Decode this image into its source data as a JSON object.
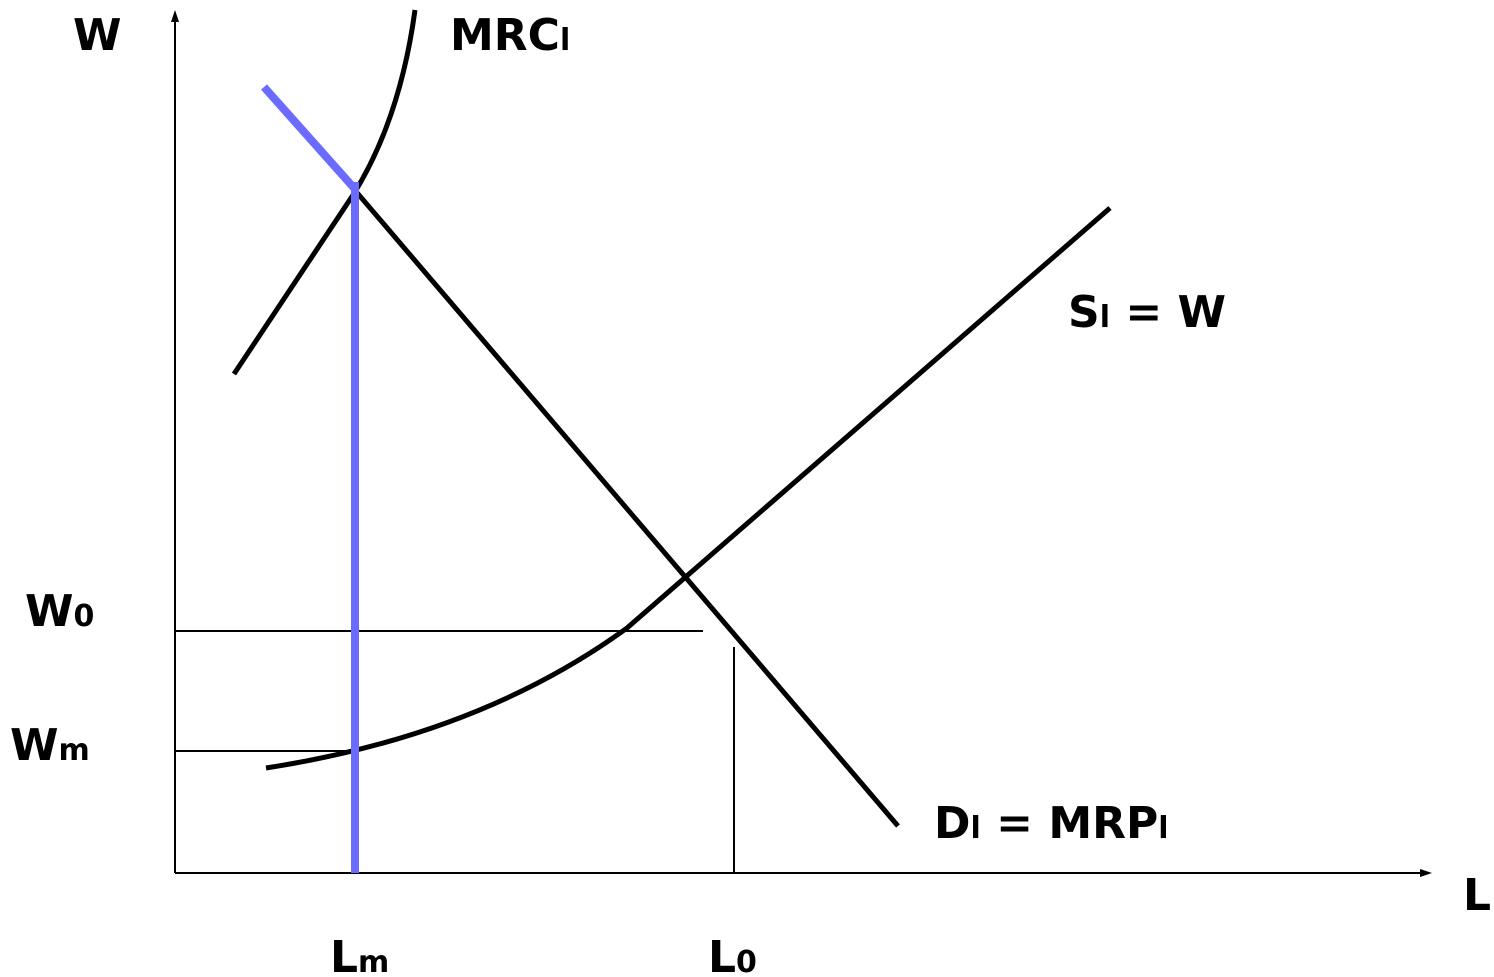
{
  "diagram": {
    "axes": {
      "y_label": "W",
      "x_label": "L"
    },
    "curves": {
      "mrc": {
        "main": "MRC",
        "sub": "l"
      },
      "supply": {
        "main": "S",
        "sub": "l",
        "rest": " = W"
      },
      "demand": {
        "main": "D",
        "sub": "l",
        "rest": " = MRP",
        "sub2": "l"
      }
    },
    "wage_ticks": {
      "w0": {
        "main": "W",
        "sub": "0"
      },
      "wm": {
        "main": "W",
        "sub": "m"
      }
    },
    "labor_ticks": {
      "lm": {
        "main": "L",
        "sub": "m"
      },
      "l0": {
        "main": "L",
        "sub": "0"
      }
    },
    "colors": {
      "curve": "#000000",
      "monopsony_highlight": "#6b6bff"
    }
  }
}
